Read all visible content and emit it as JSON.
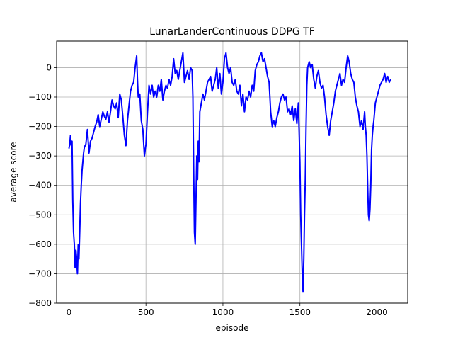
{
  "chart_data": {
    "type": "line",
    "title": "LunarLanderContinuous DDPG TF",
    "xlabel": "episode",
    "ylabel": "average score",
    "xlim": [
      -80,
      2200
    ],
    "ylim": [
      -800,
      90
    ],
    "xticks": [
      0,
      500,
      1000,
      1500,
      2000
    ],
    "yticks": [
      -800,
      -700,
      -600,
      -500,
      -400,
      -300,
      -200,
      -100,
      0
    ],
    "grid": true,
    "line_color": "#0000ff",
    "series": [
      {
        "values": [
          [
            0,
            -275
          ],
          [
            5,
            -260
          ],
          [
            10,
            -230
          ],
          [
            15,
            -265
          ],
          [
            20,
            -250
          ],
          [
            25,
            -450
          ],
          [
            30,
            -560
          ],
          [
            35,
            -600
          ],
          [
            40,
            -680
          ],
          [
            45,
            -620
          ],
          [
            50,
            -650
          ],
          [
            55,
            -700
          ],
          [
            60,
            -600
          ],
          [
            65,
            -650
          ],
          [
            70,
            -560
          ],
          [
            75,
            -460
          ],
          [
            80,
            -400
          ],
          [
            85,
            -350
          ],
          [
            90,
            -320
          ],
          [
            95,
            -290
          ],
          [
            100,
            -270
          ],
          [
            110,
            -260
          ],
          [
            120,
            -210
          ],
          [
            130,
            -290
          ],
          [
            140,
            -250
          ],
          [
            150,
            -240
          ],
          [
            160,
            -220
          ],
          [
            170,
            -200
          ],
          [
            180,
            -185
          ],
          [
            190,
            -160
          ],
          [
            200,
            -200
          ],
          [
            210,
            -175
          ],
          [
            220,
            -150
          ],
          [
            230,
            -165
          ],
          [
            240,
            -175
          ],
          [
            250,
            -150
          ],
          [
            260,
            -185
          ],
          [
            270,
            -150
          ],
          [
            280,
            -110
          ],
          [
            290,
            -130
          ],
          [
            300,
            -140
          ],
          [
            310,
            -120
          ],
          [
            320,
            -170
          ],
          [
            330,
            -90
          ],
          [
            340,
            -110
          ],
          [
            350,
            -165
          ],
          [
            360,
            -230
          ],
          [
            370,
            -265
          ],
          [
            380,
            -180
          ],
          [
            390,
            -130
          ],
          [
            400,
            -80
          ],
          [
            410,
            -60
          ],
          [
            420,
            -50
          ],
          [
            430,
            0
          ],
          [
            440,
            40
          ],
          [
            445,
            -40
          ],
          [
            450,
            -100
          ],
          [
            460,
            -90
          ],
          [
            470,
            -180
          ],
          [
            480,
            -210
          ],
          [
            490,
            -300
          ],
          [
            500,
            -260
          ],
          [
            510,
            -150
          ],
          [
            520,
            -60
          ],
          [
            530,
            -90
          ],
          [
            540,
            -60
          ],
          [
            550,
            -100
          ],
          [
            560,
            -80
          ],
          [
            570,
            -100
          ],
          [
            580,
            -60
          ],
          [
            590,
            -80
          ],
          [
            600,
            -40
          ],
          [
            610,
            -110
          ],
          [
            620,
            -80
          ],
          [
            630,
            -60
          ],
          [
            640,
            -70
          ],
          [
            650,
            -40
          ],
          [
            660,
            -60
          ],
          [
            670,
            -30
          ],
          [
            680,
            30
          ],
          [
            690,
            -20
          ],
          [
            700,
            -10
          ],
          [
            710,
            -40
          ],
          [
            720,
            -10
          ],
          [
            730,
            20
          ],
          [
            740,
            50
          ],
          [
            750,
            -50
          ],
          [
            760,
            -30
          ],
          [
            770,
            -10
          ],
          [
            780,
            -40
          ],
          [
            790,
            0
          ],
          [
            800,
            -10
          ],
          [
            805,
            -100
          ],
          [
            810,
            -350
          ],
          [
            815,
            -560
          ],
          [
            820,
            -600
          ],
          [
            825,
            -450
          ],
          [
            830,
            -300
          ],
          [
            835,
            -380
          ],
          [
            840,
            -250
          ],
          [
            845,
            -320
          ],
          [
            850,
            -150
          ],
          [
            860,
            -120
          ],
          [
            870,
            -90
          ],
          [
            880,
            -110
          ],
          [
            890,
            -80
          ],
          [
            900,
            -50
          ],
          [
            910,
            -40
          ],
          [
            920,
            -30
          ],
          [
            930,
            -80
          ],
          [
            940,
            -60
          ],
          [
            950,
            -40
          ],
          [
            960,
            0
          ],
          [
            970,
            -70
          ],
          [
            980,
            -20
          ],
          [
            990,
            -90
          ],
          [
            1000,
            -50
          ],
          [
            1010,
            30
          ],
          [
            1020,
            50
          ],
          [
            1030,
            0
          ],
          [
            1040,
            -20
          ],
          [
            1050,
            0
          ],
          [
            1060,
            -50
          ],
          [
            1070,
            -60
          ],
          [
            1080,
            -40
          ],
          [
            1090,
            -80
          ],
          [
            1100,
            -90
          ],
          [
            1110,
            -60
          ],
          [
            1120,
            -130
          ],
          [
            1130,
            -90
          ],
          [
            1140,
            -150
          ],
          [
            1150,
            -100
          ],
          [
            1160,
            -110
          ],
          [
            1170,
            -80
          ],
          [
            1180,
            -100
          ],
          [
            1190,
            -60
          ],
          [
            1200,
            -80
          ],
          [
            1210,
            -10
          ],
          [
            1220,
            10
          ],
          [
            1230,
            20
          ],
          [
            1240,
            40
          ],
          [
            1250,
            50
          ],
          [
            1260,
            20
          ],
          [
            1270,
            30
          ],
          [
            1280,
            0
          ],
          [
            1290,
            -30
          ],
          [
            1300,
            -50
          ],
          [
            1310,
            -150
          ],
          [
            1320,
            -200
          ],
          [
            1330,
            -180
          ],
          [
            1340,
            -200
          ],
          [
            1350,
            -170
          ],
          [
            1360,
            -150
          ],
          [
            1370,
            -120
          ],
          [
            1380,
            -100
          ],
          [
            1390,
            -90
          ],
          [
            1400,
            -110
          ],
          [
            1410,
            -100
          ],
          [
            1420,
            -150
          ],
          [
            1430,
            -140
          ],
          [
            1440,
            -160
          ],
          [
            1450,
            -130
          ],
          [
            1460,
            -180
          ],
          [
            1470,
            -140
          ],
          [
            1480,
            -190
          ],
          [
            1490,
            -120
          ],
          [
            1500,
            -320
          ],
          [
            1505,
            -500
          ],
          [
            1510,
            -600
          ],
          [
            1515,
            -700
          ],
          [
            1520,
            -760
          ],
          [
            1525,
            -650
          ],
          [
            1530,
            -500
          ],
          [
            1535,
            -380
          ],
          [
            1540,
            -200
          ],
          [
            1545,
            -60
          ],
          [
            1550,
            0
          ],
          [
            1560,
            20
          ],
          [
            1570,
            0
          ],
          [
            1580,
            10
          ],
          [
            1590,
            -40
          ],
          [
            1600,
            -70
          ],
          [
            1610,
            -30
          ],
          [
            1620,
            -10
          ],
          [
            1630,
            -50
          ],
          [
            1640,
            -70
          ],
          [
            1650,
            -60
          ],
          [
            1660,
            -100
          ],
          [
            1670,
            -160
          ],
          [
            1680,
            -200
          ],
          [
            1690,
            -230
          ],
          [
            1700,
            -180
          ],
          [
            1710,
            -150
          ],
          [
            1720,
            -120
          ],
          [
            1730,
            -80
          ],
          [
            1740,
            -60
          ],
          [
            1750,
            -40
          ],
          [
            1760,
            -20
          ],
          [
            1770,
            -60
          ],
          [
            1780,
            -40
          ],
          [
            1790,
            -50
          ],
          [
            1800,
            0
          ],
          [
            1810,
            40
          ],
          [
            1820,
            20
          ],
          [
            1830,
            -20
          ],
          [
            1840,
            -40
          ],
          [
            1850,
            -50
          ],
          [
            1860,
            -100
          ],
          [
            1870,
            -130
          ],
          [
            1880,
            -150
          ],
          [
            1890,
            -200
          ],
          [
            1900,
            -180
          ],
          [
            1910,
            -210
          ],
          [
            1920,
            -150
          ],
          [
            1925,
            -200
          ],
          [
            1930,
            -230
          ],
          [
            1935,
            -300
          ],
          [
            1940,
            -400
          ],
          [
            1945,
            -500
          ],
          [
            1950,
            -520
          ],
          [
            1955,
            -480
          ],
          [
            1960,
            -400
          ],
          [
            1965,
            -280
          ],
          [
            1970,
            -230
          ],
          [
            1975,
            -200
          ],
          [
            1980,
            -180
          ],
          [
            1985,
            -150
          ],
          [
            1990,
            -120
          ],
          [
            2000,
            -100
          ],
          [
            2010,
            -80
          ],
          [
            2020,
            -60
          ],
          [
            2030,
            -50
          ],
          [
            2040,
            -40
          ],
          [
            2050,
            -20
          ],
          [
            2060,
            -50
          ],
          [
            2070,
            -30
          ],
          [
            2080,
            -50
          ],
          [
            2090,
            -40
          ]
        ]
      }
    ]
  }
}
